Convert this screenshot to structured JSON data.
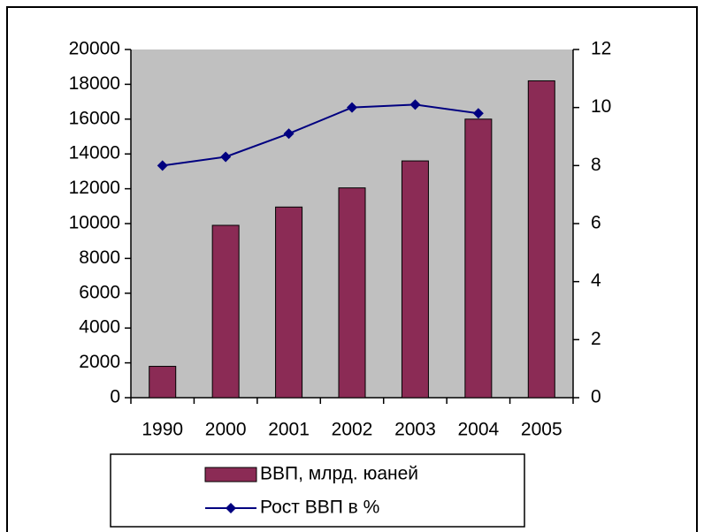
{
  "chart_data": {
    "type": "bar_line",
    "categories": [
      "1990",
      "2000",
      "2001",
      "2002",
      "2003",
      "2004",
      "2005"
    ],
    "series": [
      {
        "name": "ВВП, млрд. юаней",
        "type": "bar",
        "color": "#8b2b55",
        "values": [
          1800,
          9900,
          10950,
          12050,
          13600,
          16000,
          18200
        ]
      },
      {
        "name": "Рост ВВП в %",
        "type": "line",
        "color": "#000080",
        "axis": "y2",
        "values": [
          8.0,
          8.3,
          9.1,
          10.0,
          10.1,
          9.8,
          null
        ]
      }
    ],
    "ylim": [
      0,
      20000
    ],
    "yticks": [
      0,
      2000,
      4000,
      6000,
      8000,
      10000,
      12000,
      14000,
      16000,
      18000,
      20000
    ],
    "y2lim": [
      0,
      12
    ],
    "y2ticks": [
      0,
      2,
      4,
      6,
      8,
      10,
      12
    ],
    "plot_background": "#c0c0c0",
    "legend": "bottom"
  }
}
